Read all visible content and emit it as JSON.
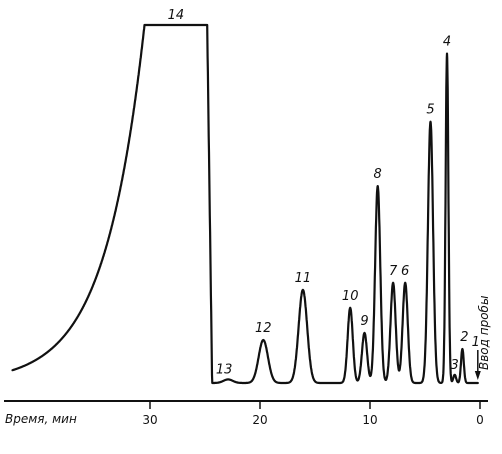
{
  "chart_data": {
    "type": "line",
    "title": "",
    "xlabel": "Время, мин",
    "ylabel": "",
    "x_reversed": true,
    "xlim": [
      0,
      42.5
    ],
    "ylim": [
      0,
      100
    ],
    "grid": false,
    "x_ticks": [
      "0",
      "10",
      "20",
      "30"
    ],
    "injection_label": "Ввод пробы",
    "peaks": [
      {
        "label": "1",
        "time": 0.2,
        "height": 0
      },
      {
        "label": "2",
        "time": 1.6,
        "height": 9.5
      },
      {
        "label": "3",
        "time": 2.3,
        "height": 2.3
      },
      {
        "label": "4",
        "time": 3.0,
        "height": 92
      },
      {
        "label": "5",
        "time": 4.5,
        "height": 73
      },
      {
        "label": "6",
        "time": 6.8,
        "height": 28
      },
      {
        "label": "7",
        "time": 7.9,
        "height": 28
      },
      {
        "label": "8",
        "time": 9.3,
        "height": 55
      },
      {
        "label": "9",
        "time": 10.5,
        "height": 14
      },
      {
        "label": "10",
        "time": 11.8,
        "height": 21
      },
      {
        "label": "11",
        "time": 16.1,
        "height": 26
      },
      {
        "label": "12",
        "time": 19.7,
        "height": 12
      },
      {
        "label": "13",
        "time": 22.9,
        "height": 1
      },
      {
        "label": "14",
        "time": 24.5,
        "height": 100,
        "start": 30.5,
        "end": 24.8
      }
    ]
  }
}
